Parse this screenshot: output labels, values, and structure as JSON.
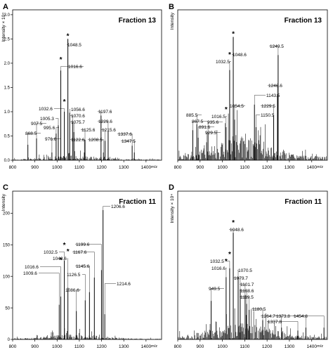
{
  "figure": {
    "panels": [
      "A",
      "B",
      "C",
      "D"
    ]
  },
  "chart_data": [
    {
      "panel": "A",
      "type": "line",
      "title": "Fraction 13",
      "xlabel": "m/z",
      "ylabel": "Intensity × 10⁴",
      "xlim": [
        800,
        1470
      ],
      "ylim": [
        0,
        3.1
      ],
      "xticks": [
        800,
        900,
        1000,
        1100,
        1200,
        1300,
        1400
      ],
      "yticks": [
        0,
        0.5,
        1,
        1.5,
        2,
        2.5,
        3
      ],
      "ytick_labels": [
        "0.0",
        "0.5",
        "1.0",
        "1.5",
        "2.0",
        "2.5",
        "3.0"
      ],
      "noise_level": 0.1,
      "peaks": [
        {
          "x": 868.5,
          "y": 0.32,
          "label": "868.5",
          "star": false
        },
        {
          "x": 907.5,
          "y": 0.45,
          "label": "907.5",
          "star": false
        },
        {
          "x": 976.6,
          "y": 0.16,
          "label": "976.6",
          "star": false
        },
        {
          "x": 995.6,
          "y": 0.55,
          "label": "995.6",
          "star": false
        },
        {
          "x": 1005.3,
          "y": 0.72,
          "label": "1005.3",
          "star": false
        },
        {
          "x": 1016.6,
          "y": 1.85,
          "label": "1016.6",
          "star": true
        },
        {
          "x": 1032.6,
          "y": 1.0,
          "label": "1032.6",
          "star": true
        },
        {
          "x": 1048.5,
          "y": 2.5,
          "label": "1048.5",
          "star": true
        },
        {
          "x": 1056.6,
          "y": 0.98,
          "label": "1056.6",
          "star": false
        },
        {
          "x": 1070.6,
          "y": 0.78,
          "label": "1070.6",
          "star": false
        },
        {
          "x": 1075.7,
          "y": 0.58,
          "label": "1075.7",
          "star": false
        },
        {
          "x": 1122.6,
          "y": 0.16,
          "label": "1122.6",
          "star": false
        },
        {
          "x": 1125.6,
          "y": 0.42,
          "label": "1125.6",
          "star": false
        },
        {
          "x": 1197.6,
          "y": 0.92,
          "label": "1197.6",
          "star": false
        },
        {
          "x": 1208.5,
          "y": 0.16,
          "label": "1208.5",
          "star": false
        },
        {
          "x": 1215.6,
          "y": 0.4,
          "label": "1215.6",
          "star": false
        },
        {
          "x": 1229.6,
          "y": 0.6,
          "label": "1229.6",
          "star": false
        },
        {
          "x": 1337.6,
          "y": 0.3,
          "label": "1337.6",
          "star": false
        },
        {
          "x": 1347.5,
          "y": 0.16,
          "label": "1347.5",
          "star": false
        }
      ]
    },
    {
      "panel": "B",
      "type": "line",
      "title": "Fraction 13",
      "xlabel": "m/z",
      "ylabel": "Intensity",
      "xlim": [
        800,
        1470
      ],
      "ylim": [
        0,
        1
      ],
      "xticks": [
        800,
        900,
        1000,
        1100,
        1200,
        1300,
        1400
      ],
      "yticks": [],
      "ytick_labels": [],
      "noise_level": 0.17,
      "peaks": [
        {
          "x": 867.5,
          "y": 0.2,
          "label": "867.5",
          "star": false
        },
        {
          "x": 885.5,
          "y": 0.24,
          "label": "885.5",
          "star": false
        },
        {
          "x": 891.6,
          "y": 0.15,
          "label": "891.6",
          "star": false
        },
        {
          "x": 929.5,
          "y": 0.12,
          "label": "929.5",
          "star": false
        },
        {
          "x": 935.6,
          "y": 0.18,
          "label": "935.6",
          "star": false
        },
        {
          "x": 1016.5,
          "y": 0.22,
          "label": "1016.5",
          "star": true
        },
        {
          "x": 1032.5,
          "y": 0.6,
          "label": "1032.5",
          "star": true
        },
        {
          "x": 1048.6,
          "y": 0.82,
          "label": "1048.6",
          "star": true
        },
        {
          "x": 1054.5,
          "y": 0.27,
          "label": "1054.5",
          "star": false
        },
        {
          "x": 1143.5,
          "y": 0.37,
          "label": "1143.5",
          "star": false
        },
        {
          "x": 1150.5,
          "y": 0.22,
          "label": "1150.5",
          "star": false
        },
        {
          "x": 1229.5,
          "y": 0.3,
          "label": "1229.5",
          "star": false
        },
        {
          "x": 1246.6,
          "y": 0.44,
          "label": "1246.6",
          "star": false
        },
        {
          "x": 1249.5,
          "y": 0.7,
          "label": "1249.5",
          "star": false
        }
      ]
    },
    {
      "panel": "C",
      "type": "line",
      "title": "Fraction 11",
      "xlabel": "m/z",
      "ylabel": "Intensity",
      "xlim": [
        800,
        1470
      ],
      "ylim": [
        0,
        235
      ],
      "xticks": [
        800,
        900,
        1000,
        1100,
        1200,
        1300,
        1400
      ],
      "yticks": [
        0,
        50,
        100,
        150,
        200
      ],
      "ytick_labels": [
        "0",
        "50",
        "100",
        "150",
        "200"
      ],
      "noise_level": 8,
      "peaks": [
        {
          "x": 1009.6,
          "y": 55,
          "label": "1009.6",
          "star": false
        },
        {
          "x": 1016.6,
          "y": 68,
          "label": "1016.6",
          "star": true
        },
        {
          "x": 1032.5,
          "y": 125,
          "label": "1032.5",
          "star": true
        },
        {
          "x": 1048.6,
          "y": 82,
          "label": "1048.6",
          "star": true
        },
        {
          "x": 1086.6,
          "y": 45,
          "label": "1086.6",
          "star": false
        },
        {
          "x": 1126.5,
          "y": 62,
          "label": "1126.5",
          "star": false
        },
        {
          "x": 1145.6,
          "y": 75,
          "label": "1145.6",
          "star": false
        },
        {
          "x": 1167.6,
          "y": 98,
          "label": "1167.6",
          "star": false
        },
        {
          "x": 1199.6,
          "y": 110,
          "label": "1199.6",
          "star": false
        },
        {
          "x": 1206.6,
          "y": 205,
          "label": "1206.6",
          "star": false
        },
        {
          "x": 1214.6,
          "y": 40,
          "label": "1214.6",
          "star": false
        }
      ]
    },
    {
      "panel": "D",
      "type": "line",
      "title": "Fraction 11",
      "xlabel": "m/z",
      "ylabel": "Intensity × 10⁴",
      "xlim": [
        800,
        1470
      ],
      "ylim": [
        0,
        1
      ],
      "xticks": [
        800,
        900,
        1000,
        1100,
        1200,
        1300,
        1400
      ],
      "yticks": [],
      "ytick_labels": [],
      "noise_level": 0.12,
      "peaks": [
        {
          "x": 949.5,
          "y": 0.26,
          "label": "949.5",
          "star": false
        },
        {
          "x": 1016.6,
          "y": 0.42,
          "label": "1016.6",
          "star": true
        },
        {
          "x": 1032.5,
          "y": 0.48,
          "label": "1032.5",
          "star": true
        },
        {
          "x": 1048.6,
          "y": 0.72,
          "label": "1048.6",
          "star": true
        },
        {
          "x": 1070.5,
          "y": 0.42,
          "label": "1070.5",
          "star": false
        },
        {
          "x": 1079.7,
          "y": 0.34,
          "label": "1079.7",
          "star": false
        },
        {
          "x": 1101.7,
          "y": 0.3,
          "label": "1101.7",
          "star": false
        },
        {
          "x": 1108.6,
          "y": 0.24,
          "label": "1108.6",
          "star": false
        },
        {
          "x": 1119.5,
          "y": 0.2,
          "label": "1119.5",
          "star": false
        },
        {
          "x": 1180.5,
          "y": 0.13,
          "label": "1180.5",
          "star": false
        },
        {
          "x": 1264.7,
          "y": 0.08,
          "label": "1264.7",
          "star": false
        },
        {
          "x": 1337.8,
          "y": 0.06,
          "label": "1337.8",
          "star": false
        },
        {
          "x": 1373.8,
          "y": 0.08,
          "label": "1373.8",
          "star": false
        },
        {
          "x": 1454.8,
          "y": 0.08,
          "label": "1454.8",
          "star": false
        }
      ]
    }
  ]
}
